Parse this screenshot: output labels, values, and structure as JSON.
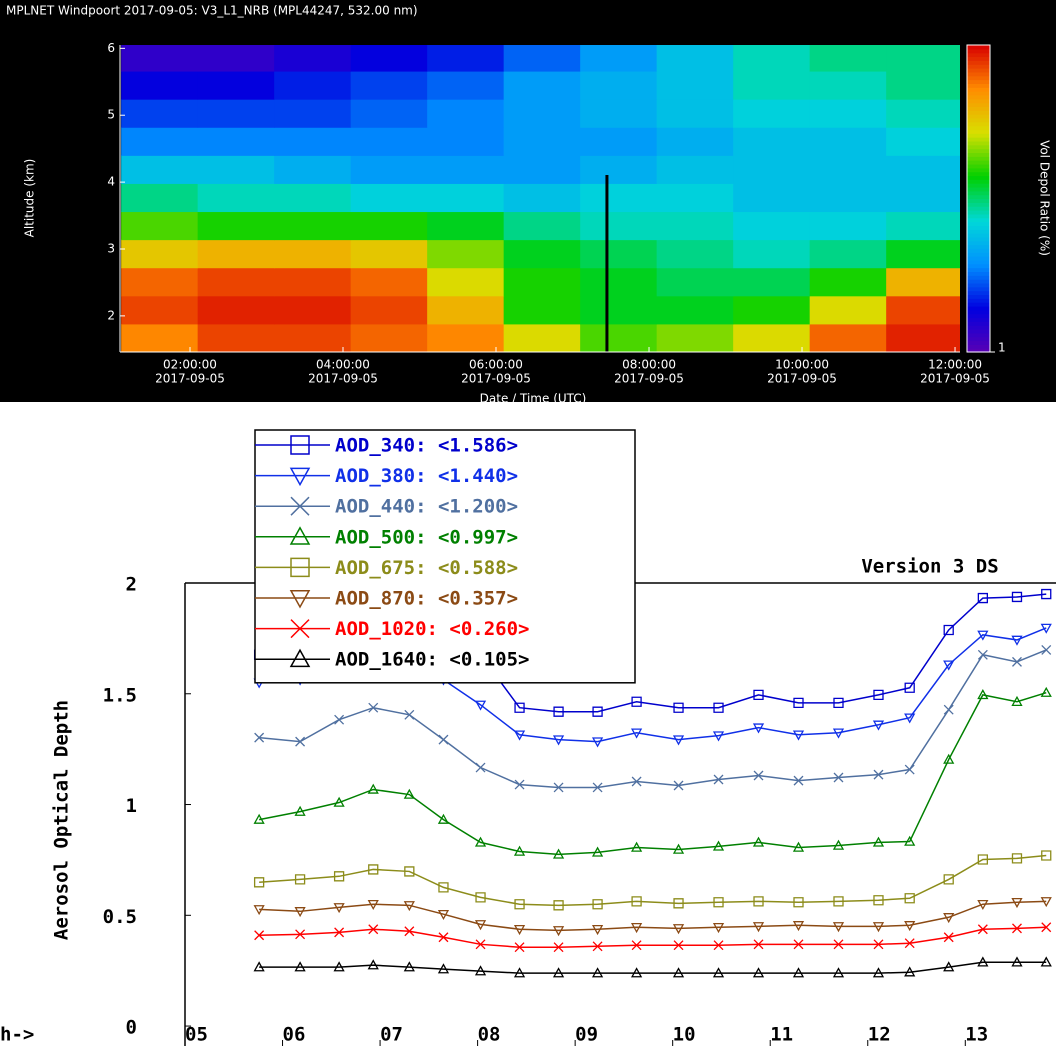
{
  "chart_data": [
    {
      "type": "heatmap",
      "title": "MPLNET Windpoort 2017-09-05:  V3_L1_NRB  (MPL44247, 532.00 nm)",
      "xlabel": "Date / Time (UTC)",
      "ylabel": "Altitude (km)",
      "colorbar_label": "Vol Depol Ratio (%)",
      "x": [
        1.6,
        2.6,
        3.6,
        4.6,
        5.6,
        6.6,
        7.6,
        8.6,
        9.6,
        10.6,
        11.6
      ],
      "y": [
        1.67,
        2.09,
        2.51,
        2.93,
        3.35,
        3.77,
        4.19,
        4.61,
        5.03,
        5.45,
        5.87
      ],
      "z": [
        [
          26,
          28,
          28,
          27,
          26,
          22,
          19,
          20,
          22,
          27,
          29
        ],
        [
          28,
          29,
          29,
          28,
          24,
          18,
          17,
          17,
          18,
          22,
          28
        ],
        [
          27,
          28,
          28,
          27,
          22,
          18,
          17,
          16,
          16,
          18,
          24
        ],
        [
          23,
          24,
          24,
          23,
          20,
          17,
          16,
          15,
          14,
          15,
          17
        ],
        [
          19,
          18,
          18,
          18,
          17,
          15,
          14,
          14,
          13,
          13,
          14
        ],
        [
          15,
          14,
          14,
          13,
          13,
          12,
          13,
          13,
          12,
          12,
          12
        ],
        [
          12,
          12,
          11,
          10,
          10,
          10,
          11,
          12,
          12,
          12,
          12
        ],
        [
          9,
          9,
          9,
          9,
          9,
          10,
          10,
          11,
          12,
          12,
          13
        ],
        [
          7,
          7,
          7,
          8,
          9,
          10,
          11,
          12,
          13,
          13,
          14
        ],
        [
          5,
          5,
          6,
          7,
          8,
          10,
          11,
          12,
          14,
          14,
          15
        ],
        [
          3,
          3,
          4,
          5,
          6,
          8,
          10,
          12,
          14,
          15,
          15
        ]
      ],
      "xlim": [
        1.085,
        12.065
      ],
      "ylim": [
        1.46,
        6.05
      ],
      "xticks": [
        {
          "value": 2,
          "label": "02:00:00"
        },
        {
          "value": 4,
          "label": "04:00:00"
        },
        {
          "value": 6,
          "label": "06:00:00"
        },
        {
          "value": 8,
          "label": "08:00:00"
        },
        {
          "value": 10,
          "label": "10:00:00"
        },
        {
          "value": 12,
          "label": "12:00:00"
        }
      ],
      "xtick_dates": [
        "2017-09-05",
        "2017-09-05",
        "2017-09-05",
        "2017-09-05",
        "2017-09-05",
        "2017-09-05"
      ],
      "yticks": [
        2,
        3,
        4,
        5,
        6
      ],
      "clim": [
        1,
        30
      ],
      "cbticks": [
        1
      ],
      "colorscale": [
        "#5a00b4",
        "#0000e0",
        "#0090ff",
        "#00d8d8",
        "#00d000",
        "#d8e000",
        "#ff8c00",
        "#d80000"
      ],
      "vlines": [
        7.45
      ]
    },
    {
      "type": "line",
      "title": "Version 3 DS",
      "xlabel": "h->",
      "ylabel": "Aerosol Optical Depth",
      "x": [
        5.76,
        6.18,
        6.58,
        6.93,
        7.3,
        7.65,
        8.03,
        8.43,
        8.83,
        9.23,
        9.63,
        10.06,
        10.47,
        10.88,
        11.29,
        11.7,
        12.11,
        12.43,
        12.83,
        13.18,
        13.53,
        13.83
      ],
      "series": [
        {
          "name": "AOD_340: <1.586>",
          "color": "#0000cc",
          "marker": "square",
          "values": [
            1.676,
            1.707,
            1.743,
            1.797,
            1.779,
            1.743,
            1.676,
            1.437,
            1.419,
            1.419,
            1.464,
            1.437,
            1.437,
            1.495,
            1.459,
            1.459,
            1.495,
            1.527,
            1.788,
            1.932,
            1.937,
            1.95
          ]
        },
        {
          "name": "AOD_380: <1.440>",
          "color": "#1030e8",
          "marker": "triangle-down",
          "values": [
            1.55,
            1.563,
            1.599,
            1.653,
            1.64,
            1.563,
            1.45,
            1.315,
            1.293,
            1.284,
            1.324,
            1.293,
            1.311,
            1.347,
            1.315,
            1.324,
            1.36,
            1.392,
            1.631,
            1.766,
            1.743,
            1.797
          ]
        },
        {
          "name": "AOD_440: <1.200>",
          "color": "#5070a0",
          "marker": "x",
          "values": [
            1.302,
            1.284,
            1.383,
            1.437,
            1.405,
            1.293,
            1.167,
            1.09,
            1.077,
            1.077,
            1.104,
            1.086,
            1.113,
            1.131,
            1.108,
            1.122,
            1.135,
            1.158,
            1.428,
            1.676,
            1.644,
            1.698
          ]
        },
        {
          "name": "AOD_500: <0.997>",
          "color": "#008000",
          "marker": "triangle",
          "values": [
            0.932,
            0.968,
            1.009,
            1.068,
            1.045,
            0.932,
            0.829,
            0.788,
            0.775,
            0.784,
            0.806,
            0.797,
            0.811,
            0.829,
            0.806,
            0.815,
            0.829,
            0.833,
            1.203,
            1.495,
            1.464,
            1.505
          ]
        },
        {
          "name": "AOD_675: <0.588>",
          "color": "#8c8c1a",
          "marker": "square",
          "values": [
            0.649,
            0.662,
            0.676,
            0.707,
            0.698,
            0.626,
            0.581,
            0.55,
            0.545,
            0.55,
            0.563,
            0.554,
            0.559,
            0.563,
            0.559,
            0.563,
            0.568,
            0.577,
            0.662,
            0.752,
            0.757,
            0.77
          ]
        },
        {
          "name": "AOD_870: <0.357>",
          "color": "#8b4a14",
          "marker": "triangle-down",
          "values": [
            0.527,
            0.518,
            0.536,
            0.55,
            0.545,
            0.505,
            0.459,
            0.437,
            0.432,
            0.437,
            0.446,
            0.441,
            0.446,
            0.45,
            0.455,
            0.45,
            0.45,
            0.455,
            0.491,
            0.55,
            0.559,
            0.563
          ]
        },
        {
          "name": "AOD_1020: <0.260>",
          "color": "#ff0000",
          "marker": "x",
          "values": [
            0.41,
            0.414,
            0.423,
            0.437,
            0.428,
            0.401,
            0.369,
            0.356,
            0.356,
            0.36,
            0.365,
            0.365,
            0.365,
            0.369,
            0.369,
            0.369,
            0.369,
            0.374,
            0.401,
            0.437,
            0.441,
            0.446
          ]
        },
        {
          "name": "AOD_1640: <0.105>",
          "color": "#000000",
          "marker": "triangle",
          "values": [
            0.266,
            0.266,
            0.266,
            0.275,
            0.266,
            0.257,
            0.248,
            0.239,
            0.239,
            0.239,
            0.239,
            0.239,
            0.239,
            0.239,
            0.239,
            0.239,
            0.239,
            0.243,
            0.266,
            0.288,
            0.288,
            0.288
          ]
        }
      ],
      "xlim": [
        5,
        13.93
      ],
      "ylim": [
        -0.09,
        2
      ],
      "xticks": [
        {
          "value": 5,
          "label": "05"
        },
        {
          "value": 6,
          "label": "06"
        },
        {
          "value": 7,
          "label": "07"
        },
        {
          "value": 8,
          "label": "08"
        },
        {
          "value": 9,
          "label": "09"
        },
        10,
        11,
        12,
        13
      ],
      "yticks": [
        0,
        0.5,
        1,
        1.5,
        2
      ]
    }
  ]
}
